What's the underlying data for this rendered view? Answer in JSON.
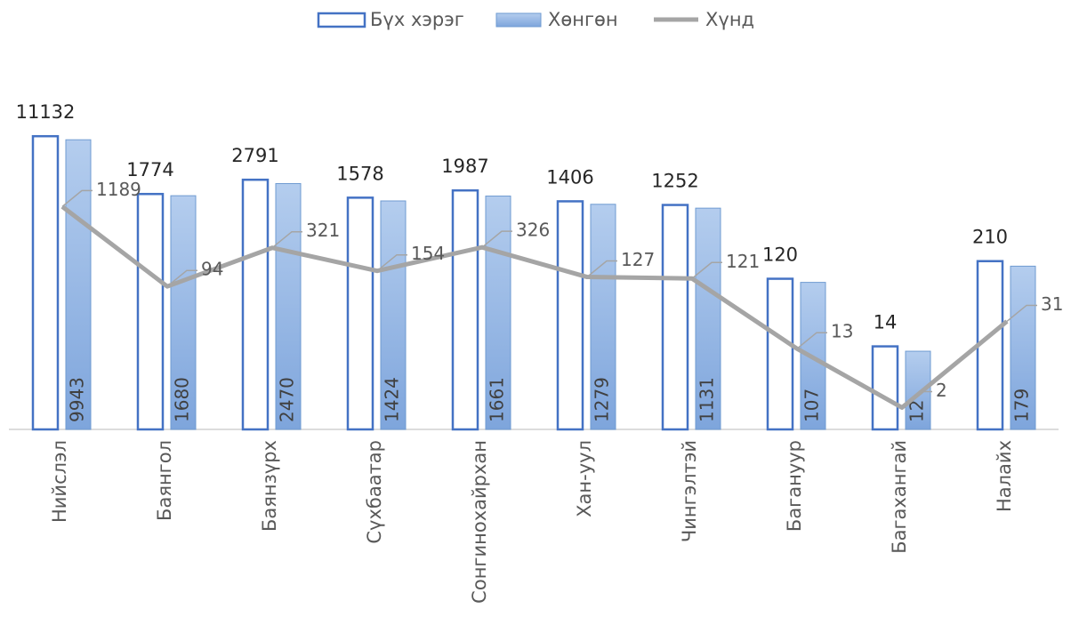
{
  "chart_data": {
    "type": "bar",
    "categories": [
      "Нийслэл",
      "Баянгол",
      "Баянзүрх",
      "Сүхбаатар",
      "Сонгинохайрхан",
      "Хан-уул",
      "Чингэлтэй",
      "Багануур",
      "Багахангай",
      "Налайх"
    ],
    "series": [
      {
        "name": "Бүх хэрэг",
        "type": "bar",
        "color": "#4472c4",
        "values": [
          11132,
          1774,
          2791,
          1578,
          1987,
          1406,
          1252,
          120,
          14,
          210
        ]
      },
      {
        "name": "Хөнгөн",
        "type": "bar",
        "color": "#8fb1e0",
        "values": [
          9943,
          1680,
          2470,
          1424,
          1661,
          1279,
          1131,
          107,
          12,
          179
        ]
      },
      {
        "name": "Хүнд",
        "type": "line",
        "color": "#a5a5a5",
        "values": [
          1189,
          94,
          321,
          154,
          326,
          127,
          121,
          13,
          2,
          31
        ]
      }
    ],
    "ylim": [
      1,
      100000
    ],
    "log_scale": true,
    "legend": "top"
  }
}
